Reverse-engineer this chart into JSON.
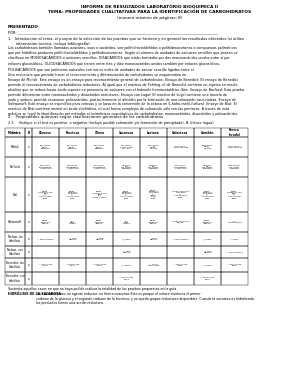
{
  "title1": "INFORME DE RESULTADOS LABORATORIO BIOQUIMICA II",
  "title2": "TEMA: PROPIEDADES CUALITATIVAS PARA LA IDENTIFICACIÓN DE CARBOHIDRATOS",
  "title3": "(número máximo de páginas: 8)",
  "presentado": "PRESENTADO",
  "por": "POR: ___________________________________________________________________________________________________________",
  "section1_title": "1.   Introducción al tema, el porqué de la selección de las pruebas que se hicieron y en general los resultados obtenidos (si utiliza\n       información teórica, incluya bibliografía).",
  "paragraph1": "Los carbohidratos también llamados azúcares, osas o sacáridos, son polihidroxialdehídos o polihidroxicetonas o compuestos poliméricos\nque por hidrólisis producen polihidroxialdehídos y polihidroxicetonas. Según el número de unidades de azúcares sencillos que posean se\nclasifican en MONOSACÁRIDOS o azúcares sencillos, DISACÁRIDOS que están formados por dos monosacáridos unidos entre sí por\nenlaces glucosídicos, OLIGOSACÁRIDOS que tienen entre tres y diez monosacáridos unidos también por enlaces glucosídicos,\nPOLISACÁRIDOS que son polímeros naturales con varios miles de unidades de azúcar sencillo ligadas entre sí.",
  "paragraph2": "Una secuencia que permite hacer el reconocimiento y diferenciación de carbohidratos se esquematiza en\nEnsayo de Molish. Este ensayo es un ensayo para reconocimiento general de carbohidratos. Ensayo de Benedict: El ensayo de Benedict\npermite el reconocimiento de carbohidratos reductores. Al igual que el reactivo de Fehling, el de Benedict contiene un cúprico en medio\nalcalino que se reduce hasta óxido cuproso en presencia de azúcares con el hidroxilo hemiacetalático libre. Ensayo de Barfoed: Esta prueba\npermite diferenciar entre monosacáridos y disacáridos reductores. Ensayo con Lugol: El reactivo de Lugol contiene una mezcla de\nyodo y yoduro, permite reconocer polisacáridos, particularmente el almidón por la formación de una coloración azul-violeta. Ensayo de\nSeliwanoff: Este ensayo es específico para cetosas y se basa en la conversión de la cetosa en 5-hidro-metil-furfural. Ensayo de Bial: El\nreactivo de Bial contiene orcinol en ácido clorhídrico, el cual forma complejos de coloración sólo con las pentosas. A través de esta\npráctica se logró la identificación por métodos colorimétricos cuantitativos de carbohidratos: monosacáridos, disacáridos y polisacáridos.",
  "section2_title": "2.   Propiedades químicas según clasificaciones generales de los carbohidratos.",
  "table_intro": "2.1.    (Indique si el test es positivo  o negativo (incluya posible coloración y/o formación de precipitado). B: blanco (agua)",
  "col_headers": [
    "Muestra",
    "B",
    "Glucose",
    "Fructosa",
    "Xilosa",
    "Sacarosa",
    "Lactosa",
    "Galactosa",
    "Almidón",
    "Fresco\n(crudo)"
  ],
  "row_headers": [
    "Test",
    "Molish",
    "Barfoed",
    "Bial",
    "Seliwanoff",
    "Nelson, sin\nhidrólisis",
    "Nelson, con\nhidrólisis",
    "Benedict, sin\nhidrólisis",
    "Benedict, con\nhidrólisis"
  ],
  "b_col": [
    "",
    "x",
    "x",
    "x",
    "x",
    "x",
    "x",
    "x",
    "x"
  ],
  "table_data": [
    [
      "POSITIVO\nColor\npurpura",
      "POSITIVO\nColor\npurpura",
      "POSITIVO\nColor\npurpura",
      "POSITIVO\nColor café-\nMarrón",
      "POSITIVO\nO\nColor\nvioleta",
      "POSITIVO\nColor violeta",
      "POSITIVO\nColor\nvioleta",
      "POSITIVO\nColor violeta"
    ],
    [
      "POSITIVO\nprecipitado\nColor rojo",
      "POSITIVO\nPrecipitado\nColor rojo",
      "POSITIVO\nPrecipitado\nColor rojo",
      "NEGATI-\nVO\nNo hubo\ncambios",
      "NEGATI\nVO\nNo hubo\ncambios",
      "POSITIVO\nPrecipitado\nColor rojo",
      "NEGATI-\nVO\nNo hubo\ncambios",
      "NEGATIVO\nNo hubo\ncambios"
    ],
    [
      "Color\namarillo con\nBial\n(-)\nAnillo color\ncafé",
      "Color\namarillo\ncon Bial\n(-)\nAnillo color\ncafé",
      "Color\namarillo con\nBial\n(+)\nColor verde",
      "Color\namarillo\ncon Bial\n(-)\nAnillo color\ncafé",
      "Color\namarillo\ncon Bial\n(-)\nAnillo\ncolor\ncafé",
      "Color amarillo\ncon Bial\n(-)\nAnillo color\ncafé",
      "Color\namarillo\ncon Bial\n(-)\nAnillo color\ncafé",
      "Color\namarillo con\nBial\n(-)\nAnillo color\ncafé"
    ],
    [
      "Color\namarillo\nopaco",
      "(+)\nRojo\nceresa",
      "Color\namarillo\nopaco",
      "(+)\nRojo\nceresa",
      "Color\namarillo\nopaco",
      "Color amarillo\nopaco",
      "Color\namarillo\nopaco",
      "(+)\nRojo ceresa"
    ],
    [
      "= rojo ladrillo",
      "= rojo\nladrillo",
      "= rojo\nladrillo",
      "(-) azul",
      "= rojo-\nladrillo",
      "= rojo ladrillo",
      "(-) azul",
      "(-) azul"
    ],
    [
      "",
      "",
      "",
      "+ rojo\nladrillo",
      "",
      "",
      "+ rojo\nladrillo",
      "= rojo ladrillo"
    ],
    [
      "= color rojo\nclaro",
      "= color rojo\nclaro",
      "= color rojo\nclaro",
      "(-) azul¡¡",
      "= color\nrojo claro",
      "= color rojo\nclaro",
      "(-) azul",
      "= color rojo\nclaro"
    ],
    [
      "",
      "",
      "",
      "= color rojo\nclaro",
      "",
      "",
      "= color rojo\nclaro",
      ""
    ]
  ],
  "footnote1": "Sustenta aquellos casos en que no haya podido realizar la totalidad de las pruebas propuestas en la guía.",
  "footnote2_bold": "HIDRÓLISIS DE LA SACAROSA:",
  "footnote2": " La sacarosa no es un agente reductor, no forma osazonas.Esto es porque el enlace involucra el primer\ncarbono de la glucosa y el segundo carbono de la fructosa, y no queda grupos reductores disponibles. Cuando la sacarosa es hidrolizada,\nlos productos tienen una acción reductora.",
  "bg_color": "#ffffff",
  "text_color": "#000000"
}
